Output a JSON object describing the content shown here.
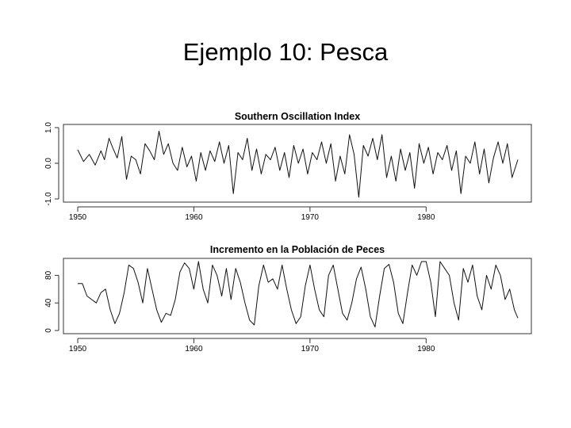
{
  "slide": {
    "title": "Ejemplo 10: Pesca"
  },
  "chart_data": [
    {
      "type": "line",
      "title": "Southern Oscillation Index",
      "xlabel": "",
      "ylabel": "",
      "xlim": [
        1950,
        1987.9
      ],
      "ylim": [
        -1.0,
        1.0
      ],
      "x_ticks": [
        1950,
        1960,
        1970,
        1980
      ],
      "y_ticks": [
        -1.0,
        0.0,
        1.0
      ],
      "y_tick_labels": [
        "-1.0",
        "0.0",
        "1.0"
      ],
      "grid": false,
      "series": [
        {
          "x": [
            1950.0,
            1950.5,
            1951.0,
            1951.5,
            1952.0,
            1952.3,
            1952.7,
            1953.0,
            1953.4,
            1953.8,
            1954.2,
            1954.6,
            1955.0,
            1955.4,
            1955.8,
            1956.2,
            1956.6,
            1957.0,
            1957.4,
            1957.8,
            1958.2,
            1958.6,
            1959.0,
            1959.4,
            1959.8,
            1960.2,
            1960.6,
            1961.0,
            1961.4,
            1961.8,
            1962.2,
            1962.6,
            1963.0,
            1963.4,
            1963.8,
            1964.2,
            1964.6,
            1965.0,
            1965.4,
            1965.8,
            1966.2,
            1966.6,
            1967.0,
            1967.4,
            1967.8,
            1968.2,
            1968.6,
            1969.0,
            1969.4,
            1969.8,
            1970.2,
            1970.6,
            1971.0,
            1971.4,
            1971.8,
            1972.2,
            1972.6,
            1973.0,
            1973.4,
            1973.8,
            1974.2,
            1974.6,
            1975.0,
            1975.4,
            1975.8,
            1976.2,
            1976.6,
            1977.0,
            1977.4,
            1977.8,
            1978.2,
            1978.6,
            1979.0,
            1979.4,
            1979.8,
            1980.2,
            1980.6,
            1981.0,
            1981.4,
            1981.8,
            1982.2,
            1982.6,
            1983.0,
            1983.4,
            1983.8,
            1984.2,
            1984.6,
            1985.0,
            1985.4,
            1985.8,
            1986.2,
            1986.6,
            1987.0,
            1987.4,
            1987.9
          ],
          "y": [
            0.38,
            0.05,
            0.25,
            -0.05,
            0.35,
            0.1,
            0.7,
            0.45,
            0.15,
            0.75,
            -0.45,
            0.2,
            0.1,
            -0.3,
            0.55,
            0.35,
            0.1,
            0.9,
            0.25,
            0.55,
            0.0,
            -0.2,
            0.45,
            -0.1,
            0.2,
            -0.5,
            0.3,
            -0.2,
            0.35,
            0.05,
            0.6,
            0.0,
            0.5,
            -0.85,
            0.3,
            0.1,
            0.7,
            -0.2,
            0.4,
            -0.3,
            0.25,
            0.1,
            0.45,
            -0.2,
            0.3,
            -0.4,
            0.5,
            0.0,
            0.4,
            -0.3,
            0.3,
            0.1,
            0.6,
            0.0,
            0.55,
            -0.5,
            0.2,
            -0.3,
            0.8,
            0.25,
            -0.95,
            0.5,
            0.2,
            0.7,
            0.1,
            0.8,
            -0.4,
            0.2,
            -0.5,
            0.4,
            -0.2,
            0.3,
            -0.7,
            0.55,
            0.0,
            0.45,
            -0.3,
            0.3,
            0.1,
            0.5,
            -0.2,
            0.35,
            -0.85,
            0.2,
            0.0,
            0.6,
            -0.3,
            0.4,
            -0.55,
            0.15,
            0.6,
            0.0,
            0.55,
            -0.4,
            0.1
          ]
        }
      ]
    },
    {
      "type": "line",
      "title": "Incremento en la Población de Peces",
      "xlabel": "",
      "ylabel": "",
      "xlim": [
        1950,
        1987.9
      ],
      "ylim": [
        0,
        100
      ],
      "x_ticks": [
        1950,
        1960,
        1970,
        1980
      ],
      "y_ticks": [
        0,
        40,
        80
      ],
      "y_tick_labels": [
        "0",
        "40",
        "80"
      ],
      "grid": false,
      "series": [
        {
          "x": [
            1950.0,
            1950.4,
            1950.8,
            1951.2,
            1951.6,
            1952.0,
            1952.4,
            1952.8,
            1953.2,
            1953.6,
            1954.0,
            1954.4,
            1954.8,
            1955.2,
            1955.6,
            1956.0,
            1956.4,
            1956.8,
            1957.2,
            1957.6,
            1958.0,
            1958.4,
            1958.8,
            1959.2,
            1959.6,
            1960.0,
            1960.4,
            1960.8,
            1961.2,
            1961.6,
            1962.0,
            1962.4,
            1962.8,
            1963.2,
            1963.6,
            1964.0,
            1964.4,
            1964.8,
            1965.2,
            1965.6,
            1966.0,
            1966.4,
            1966.8,
            1967.2,
            1967.6,
            1968.0,
            1968.4,
            1968.8,
            1969.2,
            1969.6,
            1970.0,
            1970.4,
            1970.8,
            1971.2,
            1971.6,
            1972.0,
            1972.4,
            1972.8,
            1973.2,
            1973.6,
            1974.0,
            1974.4,
            1974.8,
            1975.2,
            1975.6,
            1976.0,
            1976.4,
            1976.8,
            1977.2,
            1977.6,
            1978.0,
            1978.4,
            1978.8,
            1979.2,
            1979.6,
            1980.0,
            1980.4,
            1980.8,
            1981.2,
            1981.6,
            1982.0,
            1982.4,
            1982.8,
            1983.2,
            1983.6,
            1984.0,
            1984.4,
            1984.8,
            1985.2,
            1985.6,
            1986.0,
            1986.4,
            1986.8,
            1987.2,
            1987.6,
            1987.9
          ],
          "y": [
            68,
            68,
            50,
            45,
            40,
            55,
            60,
            30,
            10,
            25,
            55,
            95,
            90,
            70,
            40,
            90,
            60,
            30,
            12,
            25,
            22,
            45,
            85,
            98,
            90,
            60,
            100,
            60,
            40,
            95,
            80,
            50,
            90,
            45,
            90,
            70,
            40,
            15,
            8,
            65,
            95,
            70,
            75,
            60,
            95,
            60,
            30,
            10,
            20,
            65,
            95,
            60,
            30,
            20,
            80,
            95,
            60,
            25,
            15,
            40,
            75,
            92,
            60,
            20,
            5,
            50,
            90,
            96,
            70,
            25,
            10,
            55,
            95,
            80,
            100,
            100,
            70,
            20,
            100,
            90,
            80,
            40,
            15,
            90,
            70,
            95,
            50,
            30,
            80,
            60,
            95,
            80,
            45,
            60,
            30,
            18
          ]
        }
      ]
    }
  ]
}
